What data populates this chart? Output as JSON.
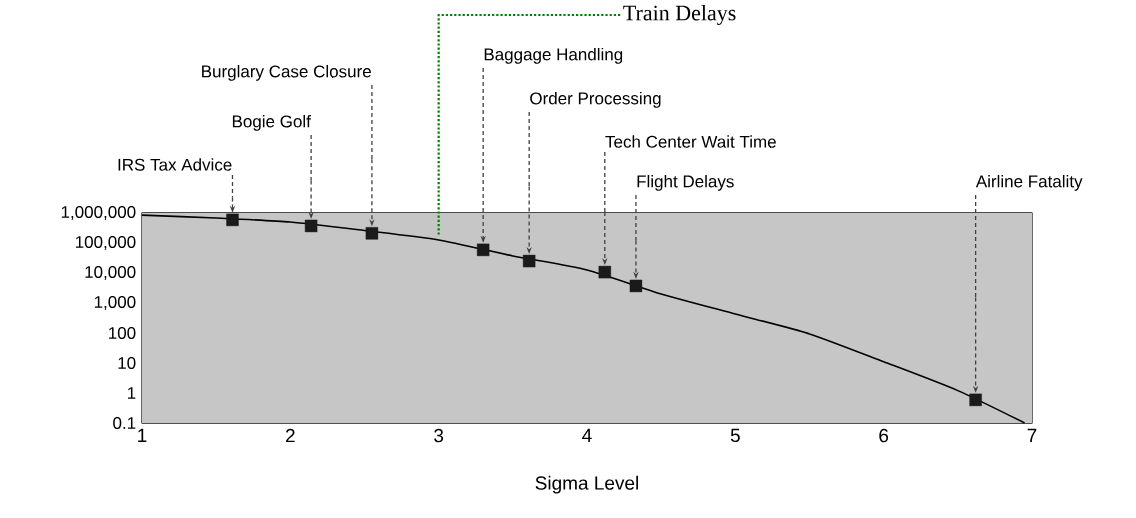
{
  "chart_data": {
    "type": "line",
    "xlabel": "Sigma Level",
    "xlim": [
      1,
      7
    ],
    "xticks": [
      1,
      2,
      3,
      4,
      5,
      6,
      7
    ],
    "ylim": [
      0.1,
      1000000
    ],
    "yticks": [
      0.1,
      1,
      10,
      100,
      {
        "value": 1000,
        "label": "1,000"
      },
      {
        "value": 10000,
        "label": "10,000"
      },
      {
        "value": 100000,
        "label": "100,000"
      },
      {
        "value": 1000000,
        "label": "1,000,000"
      }
    ],
    "log": "y",
    "grid": "y",
    "series": [
      {
        "color": "#000000",
        "x": [
          1,
          1.5,
          2,
          2.5,
          3,
          3.5,
          4,
          4.5,
          5,
          5.5,
          6,
          6.5,
          6.95
        ],
        "values": [
          850000,
          680000,
          500000,
          260000,
          126000,
          37000,
          12600,
          2000,
          430,
          93,
          11,
          1.2,
          0.1
        ]
      },
      {
        "type": "scatter",
        "marker": "square",
        "color": "#1a1a1a",
        "x": [
          1.61,
          2.14,
          2.55,
          3.3,
          3.61,
          4.12,
          4.33,
          6.62
        ],
        "values": [
          590000,
          370000,
          210000,
          59000,
          25000,
          10700,
          3700,
          0.59
        ]
      }
    ],
    "annotations": [
      "IRS Tax Advice",
      "Bogie Golf",
      "Burglary Case Closure",
      "Baggage Handling",
      "Order Processing",
      "Tech Center Wait Time",
      "Flight Delays",
      "Airline Fatality",
      {
        "text": "Train Delays",
        "x": 3.0,
        "y": 120000
      }
    ]
  }
}
